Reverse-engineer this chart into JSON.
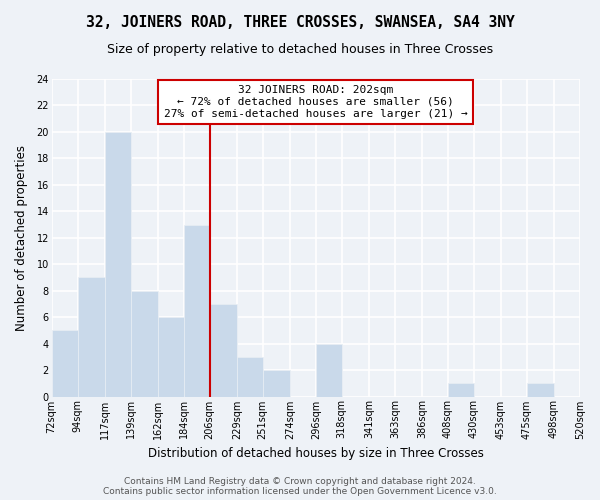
{
  "title": "32, JOINERS ROAD, THREE CROSSES, SWANSEA, SA4 3NY",
  "subtitle": "Size of property relative to detached houses in Three Crosses",
  "xlabel": "Distribution of detached houses by size in Three Crosses",
  "ylabel": "Number of detached properties",
  "bins": [
    72,
    94,
    117,
    139,
    162,
    184,
    206,
    229,
    251,
    274,
    296,
    318,
    341,
    363,
    386,
    408,
    430,
    453,
    475,
    498,
    520
  ],
  "counts": [
    5,
    9,
    20,
    8,
    6,
    13,
    7,
    3,
    2,
    0,
    4,
    0,
    0,
    0,
    0,
    1,
    0,
    0,
    1,
    0
  ],
  "bar_color": "#c9d9ea",
  "bar_edge_color": "#e8eef4",
  "vline_color": "#cc0000",
  "annotation_text": "32 JOINERS ROAD: 202sqm\n← 72% of detached houses are smaller (56)\n27% of semi-detached houses are larger (21) →",
  "annotation_box_edge": "#cc0000",
  "annotation_box_face": "#ffffff",
  "ylim": [
    0,
    24
  ],
  "yticks": [
    0,
    2,
    4,
    6,
    8,
    10,
    12,
    14,
    16,
    18,
    20,
    22,
    24
  ],
  "tick_labels": [
    "72sqm",
    "94sqm",
    "117sqm",
    "139sqm",
    "162sqm",
    "184sqm",
    "206sqm",
    "229sqm",
    "251sqm",
    "274sqm",
    "296sqm",
    "318sqm",
    "341sqm",
    "363sqm",
    "386sqm",
    "408sqm",
    "430sqm",
    "453sqm",
    "475sqm",
    "498sqm",
    "520sqm"
  ],
  "footer1": "Contains HM Land Registry data © Crown copyright and database right 2024.",
  "footer2": "Contains public sector information licensed under the Open Government Licence v3.0.",
  "bg_color": "#eef2f7",
  "grid_color": "#ffffff",
  "title_fontsize": 10.5,
  "subtitle_fontsize": 9,
  "axis_label_fontsize": 8.5,
  "tick_fontsize": 7,
  "annotation_fontsize": 8,
  "footer_fontsize": 6.5
}
